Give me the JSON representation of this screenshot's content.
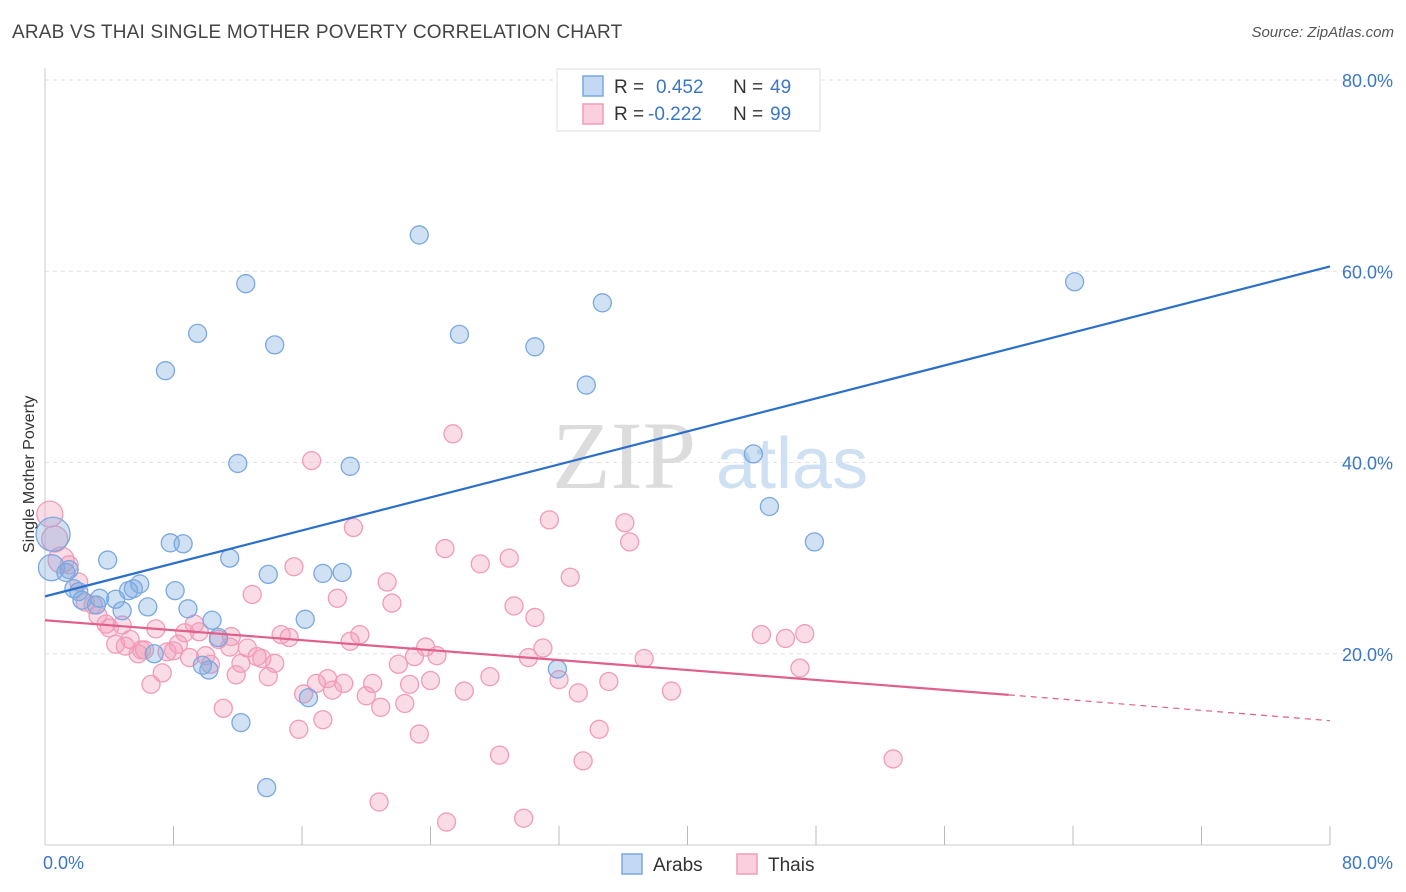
{
  "title": "ARAB VS THAI SINGLE MOTHER POVERTY CORRELATION CHART",
  "source": "Source: ZipAtlas.com",
  "watermark": {
    "zip": "ZIP",
    "atlas": "atlas"
  },
  "colors": {
    "arabs": "#7aa8e0",
    "arabs_line": "#2b6fcb",
    "thais": "#f19bb8",
    "thais_line": "#e0608a",
    "tick": "#3b77c7"
  },
  "legend": {
    "rows": [
      {
        "r_label": "R =",
        "r_value": "0.452",
        "n_label": "N =",
        "n_value": "49"
      },
      {
        "r_label": "R =",
        "r_value": "-0.222",
        "n_label": "N =",
        "n_value": "99"
      }
    ]
  },
  "chart_data": {
    "type": "scatter",
    "title": "ARAB VS THAI SINGLE MOTHER POVERTY CORRELATION CHART",
    "xlabel": "",
    "ylabel": "Single Mother Poverty",
    "xlim": [
      0,
      80
    ],
    "ylim": [
      0,
      80
    ],
    "x_tick_labels": [
      "0.0%",
      "80.0%"
    ],
    "y_ticks": [
      {
        "value": 20,
        "label": "20.0%"
      },
      {
        "value": 40,
        "label": "40.0%"
      },
      {
        "value": 60,
        "label": "60.0%"
      },
      {
        "value": 80,
        "label": "80.0%"
      }
    ],
    "grid": true,
    "legend_placement": "bottom-center",
    "series": [
      {
        "name": "Arabs",
        "regression": {
          "x0": 0,
          "y0": 26.0,
          "x1": 80,
          "y1": 60.5
        },
        "points": [
          [
            0.5,
            32.5,
            3
          ],
          [
            0.4,
            29,
            2
          ],
          [
            1.3,
            28.5,
            1
          ],
          [
            1.5,
            28.8,
            1
          ],
          [
            1.8,
            26.8,
            1
          ],
          [
            2.1,
            26.5,
            1
          ],
          [
            2.3,
            25.6,
            1
          ],
          [
            3.2,
            25.1,
            1
          ],
          [
            3.4,
            25.8,
            1
          ],
          [
            3.9,
            29.8,
            1
          ],
          [
            4.4,
            25.7,
            1
          ],
          [
            4.8,
            24.5,
            1
          ],
          [
            5.2,
            26.6,
            1
          ],
          [
            5.5,
            26.8,
            1
          ],
          [
            5.9,
            27.3,
            1
          ],
          [
            6.4,
            24.9,
            1
          ],
          [
            6.8,
            20.0,
            1
          ],
          [
            7.5,
            49.6,
            1
          ],
          [
            7.8,
            31.6,
            1
          ],
          [
            8.1,
            26.6,
            1
          ],
          [
            8.6,
            31.5,
            1
          ],
          [
            8.9,
            24.7,
            1
          ],
          [
            9.5,
            53.5,
            1
          ],
          [
            9.8,
            18.8,
            1
          ],
          [
            10.2,
            18.3,
            1
          ],
          [
            10.4,
            23.5,
            1
          ],
          [
            10.8,
            21.7,
            1
          ],
          [
            11.5,
            30.0,
            1
          ],
          [
            12.0,
            39.9,
            1
          ],
          [
            12.2,
            12.8,
            1
          ],
          [
            12.5,
            58.7,
            1
          ],
          [
            13.8,
            6.0,
            1
          ],
          [
            13.9,
            28.3,
            1
          ],
          [
            14.3,
            52.3,
            1
          ],
          [
            16.2,
            23.6,
            1
          ],
          [
            16.4,
            15.4,
            1
          ],
          [
            17.3,
            28.4,
            1
          ],
          [
            18.5,
            28.5,
            1
          ],
          [
            19.0,
            39.6,
            1
          ],
          [
            23.3,
            63.8,
            1
          ],
          [
            25.8,
            53.4,
            1
          ],
          [
            30.5,
            52.1,
            1
          ],
          [
            31.9,
            18.4,
            1
          ],
          [
            33.7,
            48.1,
            1
          ],
          [
            34.7,
            56.7,
            1
          ],
          [
            44.1,
            40.9,
            1
          ],
          [
            45.1,
            35.4,
            1
          ],
          [
            47.9,
            31.7,
            1
          ],
          [
            64.1,
            58.9,
            1
          ]
        ]
      },
      {
        "name": "Thais",
        "regression": {
          "x0": 0,
          "y0": 23.5,
          "x1": 60,
          "y1": 15.7,
          "dash_x1": 80,
          "dash_y1": 13.0
        },
        "points": [
          [
            0.3,
            34.6,
            2
          ],
          [
            0.6,
            32,
            2
          ],
          [
            1.0,
            29.8,
            2
          ],
          [
            1.5,
            29.3,
            1
          ],
          [
            2.1,
            27.5,
            1
          ],
          [
            2.5,
            25.4,
            1
          ],
          [
            3.0,
            25.1,
            1
          ],
          [
            3.3,
            24.0,
            1
          ],
          [
            3.8,
            23.1,
            1
          ],
          [
            4.0,
            22.7,
            1
          ],
          [
            4.4,
            21.0,
            1
          ],
          [
            4.8,
            23.0,
            1
          ],
          [
            5.0,
            20.8,
            1
          ],
          [
            5.3,
            21.5,
            1
          ],
          [
            5.8,
            20.0,
            1
          ],
          [
            6.2,
            20.4,
            1
          ],
          [
            6.6,
            16.8,
            1
          ],
          [
            6.9,
            22.6,
            1
          ],
          [
            7.3,
            18.0,
            1
          ],
          [
            7.6,
            20.2,
            1
          ],
          [
            8.0,
            20.3,
            1
          ],
          [
            8.3,
            21.0,
            1
          ],
          [
            8.7,
            22.2,
            1
          ],
          [
            9.0,
            19.6,
            1
          ],
          [
            9.3,
            23.1,
            1
          ],
          [
            9.6,
            22.3,
            1
          ],
          [
            10.0,
            19.8,
            1
          ],
          [
            10.3,
            18.9,
            1
          ],
          [
            10.8,
            21.5,
            1
          ],
          [
            11.1,
            14.3,
            1
          ],
          [
            11.5,
            20.7,
            1
          ],
          [
            11.9,
            17.8,
            1
          ],
          [
            12.2,
            19.0,
            1
          ],
          [
            12.6,
            20.6,
            1
          ],
          [
            12.9,
            26.2,
            1
          ],
          [
            13.2,
            19.7,
            1
          ],
          [
            13.5,
            19.5,
            1
          ],
          [
            13.9,
            17.6,
            1
          ],
          [
            14.3,
            19.0,
            1
          ],
          [
            14.7,
            22.0,
            1
          ],
          [
            15.2,
            21.7,
            1
          ],
          [
            15.5,
            29.1,
            1
          ],
          [
            15.8,
            12.1,
            1
          ],
          [
            16.1,
            15.8,
            1
          ],
          [
            16.6,
            40.2,
            1
          ],
          [
            16.9,
            16.9,
            1
          ],
          [
            17.3,
            13.1,
            1
          ],
          [
            17.6,
            17.4,
            1
          ],
          [
            17.9,
            16.2,
            1
          ],
          [
            18.2,
            25.8,
            1
          ],
          [
            18.6,
            16.9,
            1
          ],
          [
            19.0,
            21.3,
            1
          ],
          [
            19.2,
            33.2,
            1
          ],
          [
            19.6,
            22.0,
            1
          ],
          [
            20.0,
            15.6,
            1
          ],
          [
            20.4,
            16.9,
            1
          ],
          [
            20.8,
            4.5,
            1
          ],
          [
            20.9,
            14.4,
            1
          ],
          [
            21.3,
            27.5,
            1
          ],
          [
            21.6,
            25.3,
            1
          ],
          [
            22.0,
            18.9,
            1
          ],
          [
            22.4,
            14.8,
            1
          ],
          [
            22.7,
            16.8,
            1
          ],
          [
            23.0,
            19.7,
            1
          ],
          [
            23.3,
            11.6,
            1
          ],
          [
            23.7,
            20.7,
            1
          ],
          [
            24.0,
            17.2,
            1
          ],
          [
            24.4,
            19.8,
            1
          ],
          [
            24.9,
            31.0,
            1
          ],
          [
            25.0,
            2.4,
            1
          ],
          [
            25.4,
            43.0,
            1
          ],
          [
            26.1,
            16.1,
            1
          ],
          [
            27.1,
            29.4,
            1
          ],
          [
            27.7,
            17.6,
            1
          ],
          [
            28.3,
            9.4,
            1
          ],
          [
            28.9,
            30.0,
            1
          ],
          [
            29.2,
            25.0,
            1
          ],
          [
            29.8,
            2.8,
            1
          ],
          [
            30.1,
            19.6,
            1
          ],
          [
            30.5,
            23.8,
            1
          ],
          [
            31.0,
            20.6,
            1
          ],
          [
            31.4,
            34.0,
            1
          ],
          [
            32.0,
            17.3,
            1
          ],
          [
            32.7,
            28.0,
            1
          ],
          [
            33.2,
            15.9,
            1
          ],
          [
            33.5,
            8.8,
            1
          ],
          [
            34.5,
            12.1,
            1
          ],
          [
            35.1,
            17.1,
            1
          ],
          [
            36.1,
            33.7,
            1
          ],
          [
            36.4,
            31.7,
            1
          ],
          [
            37.3,
            19.5,
            1
          ],
          [
            39.0,
            16.1,
            1
          ],
          [
            44.6,
            22.0,
            1
          ],
          [
            46.1,
            21.6,
            1
          ],
          [
            47.0,
            18.5,
            1
          ],
          [
            47.3,
            22.1,
            1
          ],
          [
            52.8,
            9.0,
            1
          ],
          [
            11.6,
            21.8,
            1
          ],
          [
            6.0,
            20.4,
            1
          ]
        ]
      }
    ]
  },
  "bottom_legend": {
    "items": [
      "Arabs",
      "Thais"
    ]
  }
}
